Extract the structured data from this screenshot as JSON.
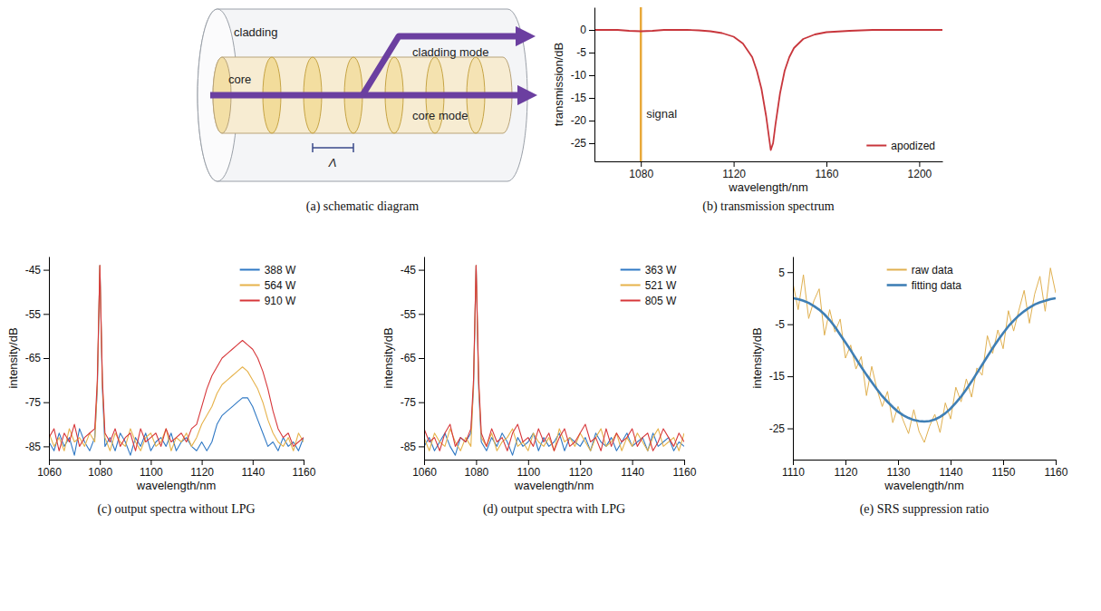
{
  "chart_data": [
    {
      "type": "diagram",
      "title": "(a) schematic diagram",
      "labels": [
        "cladding",
        "core",
        "cladding mode",
        "core mode",
        "Λ"
      ]
    },
    {
      "type": "line",
      "title": "(b) transmission spectrum",
      "xlabel": "wavelength/nm",
      "ylabel": "transmission/dB",
      "xlim": [
        1060,
        1210
      ],
      "ylim": [
        -29,
        5
      ],
      "xticks": [
        1080,
        1120,
        1160,
        1200
      ],
      "yticks": [
        -25,
        -20,
        -15,
        -10,
        -5,
        0
      ],
      "grid": false,
      "legend": "lower right",
      "x": [
        1060,
        1070,
        1075,
        1080,
        1085,
        1090,
        1100,
        1105,
        1110,
        1115,
        1120,
        1124,
        1128,
        1130,
        1132,
        1134,
        1136,
        1137,
        1138,
        1140,
        1142,
        1144,
        1146,
        1150,
        1155,
        1160,
        1170,
        1180,
        1190,
        1200,
        1210
      ],
      "series": [
        {
          "name": "apodized",
          "color": "#c8363c",
          "values": [
            0,
            0,
            -0.2,
            -0.3,
            -0.2,
            0,
            0,
            -0.1,
            -0.3,
            -0.7,
            -1.5,
            -3,
            -6,
            -9,
            -13,
            -19,
            -26.5,
            -25,
            -21,
            -14,
            -9,
            -6,
            -4,
            -2,
            -1,
            -0.5,
            -0.2,
            0,
            0,
            0,
            0
          ]
        }
      ],
      "vlines": [
        {
          "x": 1080,
          "label": "signal",
          "color": "#e8a83a"
        }
      ]
    },
    {
      "type": "line",
      "title": "(c) output spectra without LPG",
      "xlabel": "wavelength/nm",
      "ylabel": "intensity/dB",
      "xlim": [
        1060,
        1160
      ],
      "ylim": [
        -88,
        -42
      ],
      "xticks": [
        1060,
        1080,
        1100,
        1120,
        1140,
        1160
      ],
      "yticks": [
        -85,
        -75,
        -65,
        -55,
        -45
      ],
      "grid": false,
      "legend": "upper right",
      "x": [
        1060,
        1062,
        1064,
        1066,
        1068,
        1070,
        1072,
        1074,
        1076,
        1078,
        1079,
        1080,
        1081,
        1082,
        1084,
        1086,
        1088,
        1090,
        1092,
        1094,
        1096,
        1098,
        1100,
        1102,
        1104,
        1106,
        1108,
        1110,
        1112,
        1114,
        1116,
        1118,
        1120,
        1122,
        1124,
        1126,
        1128,
        1130,
        1132,
        1134,
        1136,
        1138,
        1140,
        1142,
        1144,
        1146,
        1148,
        1150,
        1152,
        1154,
        1156,
        1158,
        1160
      ],
      "series": [
        {
          "name": "388 W",
          "color": "#2f78c4",
          "values": [
            -84,
            -86,
            -82,
            -85,
            -83,
            -87,
            -81,
            -84,
            -86,
            -83,
            -72,
            -44,
            -72,
            -85,
            -83,
            -86,
            -82,
            -84,
            -87,
            -83,
            -85,
            -82,
            -86,
            -84,
            -83,
            -85,
            -82,
            -86,
            -84,
            -83,
            -85,
            -86,
            -84,
            -86,
            -84,
            -80,
            -78,
            -77,
            -76,
            -75,
            -74,
            -74,
            -76,
            -79,
            -82,
            -85,
            -84,
            -86,
            -83,
            -85,
            -84,
            -86,
            -83
          ]
        },
        {
          "name": "564 W",
          "color": "#e6b24a",
          "values": [
            -82,
            -85,
            -83,
            -86,
            -81,
            -84,
            -83,
            -85,
            -82,
            -84,
            -71,
            -44,
            -71,
            -83,
            -86,
            -82,
            -84,
            -85,
            -81,
            -84,
            -86,
            -83,
            -82,
            -85,
            -84,
            -81,
            -86,
            -83,
            -84,
            -82,
            -85,
            -83,
            -80,
            -78,
            -76,
            -73,
            -71,
            -70,
            -69,
            -68,
            -67,
            -68,
            -70,
            -72,
            -75,
            -79,
            -82,
            -84,
            -85,
            -83,
            -86,
            -82,
            -84
          ]
        },
        {
          "name": "910 W",
          "color": "#d7373a",
          "values": [
            -83,
            -81,
            -86,
            -82,
            -84,
            -80,
            -85,
            -83,
            -82,
            -81,
            -70,
            -44,
            -70,
            -82,
            -84,
            -81,
            -85,
            -83,
            -82,
            -86,
            -81,
            -84,
            -83,
            -82,
            -85,
            -81,
            -84,
            -83,
            -82,
            -84,
            -81,
            -80,
            -76,
            -72,
            -69,
            -67,
            -65,
            -64,
            -63,
            -62,
            -61,
            -62,
            -63,
            -65,
            -68,
            -72,
            -77,
            -81,
            -83,
            -82,
            -85,
            -84,
            -83
          ]
        }
      ]
    },
    {
      "type": "line",
      "title": "(d) output spectra with LPG",
      "xlabel": "wavelength/nm",
      "ylabel": "intensity/dB",
      "xlim": [
        1060,
        1160
      ],
      "ylim": [
        -88,
        -42
      ],
      "xticks": [
        1060,
        1080,
        1100,
        1120,
        1140,
        1160
      ],
      "yticks": [
        -85,
        -75,
        -65,
        -55,
        -45
      ],
      "grid": false,
      "legend": "upper right",
      "x": [
        1060,
        1062,
        1064,
        1066,
        1068,
        1070,
        1072,
        1074,
        1076,
        1078,
        1079,
        1080,
        1081,
        1082,
        1084,
        1086,
        1088,
        1090,
        1092,
        1094,
        1096,
        1098,
        1100,
        1102,
        1104,
        1106,
        1108,
        1110,
        1112,
        1114,
        1116,
        1118,
        1120,
        1122,
        1124,
        1126,
        1128,
        1130,
        1132,
        1134,
        1136,
        1138,
        1140,
        1142,
        1144,
        1146,
        1148,
        1150,
        1152,
        1154,
        1156,
        1158,
        1160
      ],
      "series": [
        {
          "name": "363 W",
          "color": "#2f78c4",
          "values": [
            -85,
            -83,
            -86,
            -84,
            -82,
            -85,
            -87,
            -83,
            -84,
            -82,
            -72,
            -44,
            -72,
            -84,
            -86,
            -83,
            -85,
            -82,
            -84,
            -87,
            -83,
            -85,
            -84,
            -82,
            -86,
            -83,
            -85,
            -84,
            -82,
            -86,
            -83,
            -84,
            -85,
            -83,
            -86,
            -82,
            -84,
            -85,
            -83,
            -86,
            -84,
            -82,
            -85,
            -84,
            -83,
            -86,
            -82,
            -85,
            -84,
            -83,
            -86,
            -84,
            -85
          ]
        },
        {
          "name": "521 W",
          "color": "#e6b24a",
          "values": [
            -83,
            -86,
            -82,
            -84,
            -85,
            -81,
            -84,
            -86,
            -83,
            -85,
            -71,
            -44,
            -71,
            -83,
            -85,
            -82,
            -86,
            -84,
            -83,
            -81,
            -85,
            -84,
            -86,
            -82,
            -84,
            -85,
            -83,
            -86,
            -81,
            -84,
            -83,
            -85,
            -82,
            -84,
            -86,
            -83,
            -81,
            -85,
            -84,
            -82,
            -86,
            -83,
            -85,
            -82,
            -84,
            -86,
            -83,
            -81,
            -85,
            -84,
            -83,
            -86,
            -82
          ]
        },
        {
          "name": "805 W",
          "color": "#d7373a",
          "values": [
            -81,
            -84,
            -83,
            -86,
            -82,
            -80,
            -85,
            -83,
            -84,
            -81,
            -70,
            -44,
            -70,
            -82,
            -85,
            -81,
            -84,
            -83,
            -86,
            -82,
            -80,
            -84,
            -83,
            -85,
            -81,
            -84,
            -82,
            -86,
            -83,
            -81,
            -85,
            -84,
            -82,
            -80,
            -84,
            -83,
            -86,
            -81,
            -85,
            -82,
            -84,
            -83,
            -81,
            -85,
            -83,
            -82,
            -86,
            -84,
            -81,
            -83,
            -85,
            -82,
            -84
          ]
        }
      ]
    },
    {
      "type": "line",
      "title": "(e) SRS suppression ratio",
      "xlabel": "wavelength/nm",
      "ylabel": "intensity/dB",
      "xlim": [
        1110,
        1160
      ],
      "ylim": [
        -31,
        8
      ],
      "xticks": [
        1110,
        1120,
        1130,
        1140,
        1150,
        1160
      ],
      "yticks": [
        -25,
        -15,
        -5,
        5
      ],
      "grid": false,
      "legend": "upper center",
      "x": [
        1110,
        1111,
        1112,
        1113,
        1114,
        1115,
        1116,
        1117,
        1118,
        1119,
        1120,
        1121,
        1122,
        1123,
        1124,
        1125,
        1126,
        1127,
        1128,
        1129,
        1130,
        1131,
        1132,
        1133,
        1134,
        1135,
        1136,
        1137,
        1138,
        1139,
        1140,
        1141,
        1142,
        1143,
        1144,
        1145,
        1146,
        1147,
        1148,
        1149,
        1150,
        1151,
        1152,
        1153,
        1154,
        1155,
        1156,
        1157,
        1158,
        1159,
        1160
      ],
      "series": [
        {
          "name": "raw data",
          "color": "#e0b050",
          "values": [
            3,
            -2.2,
            4.5,
            -3.9,
            -0.5,
            1.8,
            -7.1,
            -2.2,
            -6.5,
            -4,
            -11.5,
            -9,
            -13.6,
            -11.2,
            -18.7,
            -13.1,
            -17.5,
            -20.8,
            -17.9,
            -23.9,
            -20.8,
            -23.5,
            -26,
            -21.4,
            -25.6,
            -27.7,
            -24.6,
            -22.3,
            -25.8,
            -20.1,
            -23.2,
            -17.1,
            -19.9,
            -15.5,
            -19,
            -13.4,
            -14.8,
            -7.2,
            -10.6,
            -6.1,
            -9.7,
            -2.4,
            -6.3,
            -2.3,
            1.5,
            -4.8,
            0.8,
            4.2,
            -2.5,
            5.8,
            1
          ]
        },
        {
          "name": "fitting data",
          "color": "#3f7fb5",
          "values": [
            0,
            -0.2,
            -0.5,
            -0.9,
            -1.5,
            -2.2,
            -3.1,
            -4.2,
            -5.5,
            -7,
            -8.5,
            -10,
            -11.6,
            -13.2,
            -14.7,
            -16.1,
            -17.5,
            -18.8,
            -19.9,
            -20.9,
            -21.8,
            -22.5,
            -23,
            -23.4,
            -23.6,
            -23.7,
            -23.6,
            -23.3,
            -22.8,
            -22.1,
            -21.2,
            -20.1,
            -18.9,
            -17.5,
            -16,
            -14.4,
            -12.8,
            -11.2,
            -9.6,
            -8.1,
            -6.7,
            -5.4,
            -4.3,
            -3.3,
            -2.5,
            -1.8,
            -1.2,
            -0.8,
            -0.5,
            -0.2,
            0
          ]
        }
      ]
    }
  ]
}
